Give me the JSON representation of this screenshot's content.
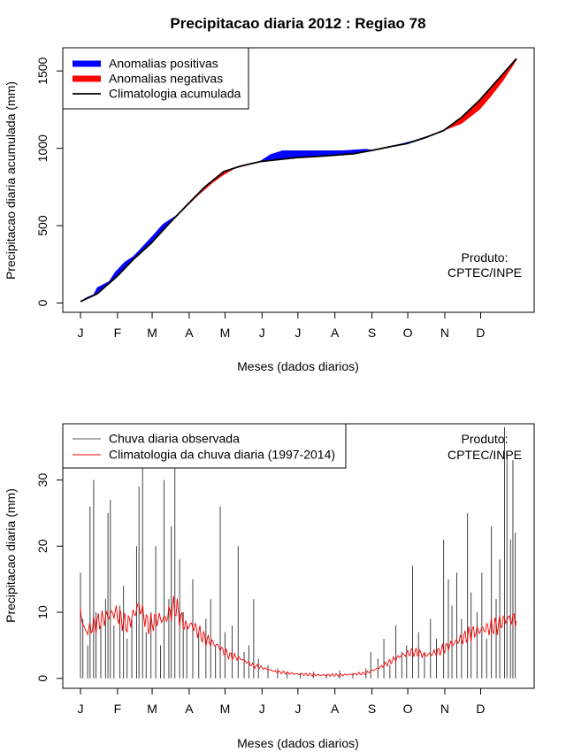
{
  "title": "Precipitacao diaria 2012 : Regiao 78",
  "chart_data": [
    {
      "type": "area",
      "ylabel": "Precipitacao diaria acumulada (mm)",
      "xlabel": "Meses (dados diarios)",
      "x_ticks": [
        "J",
        "F",
        "M",
        "A",
        "M",
        "J",
        "J",
        "A",
        "S",
        "O",
        "N",
        "D"
      ],
      "x_range_days": [
        1,
        366
      ],
      "ylim": [
        -60,
        1650
      ],
      "y_ticks": [
        0,
        500,
        1000,
        1500
      ],
      "legend": {
        "position": "top-left",
        "items": [
          {
            "label": "Anomalias positivas",
            "color": "#0000ff",
            "kind": "thick-line"
          },
          {
            "label": "Anomalias negativas",
            "color": "#ff0000",
            "kind": "thick-line"
          },
          {
            "label": "Climatologia acumulada",
            "color": "#000000",
            "kind": "line"
          }
        ]
      },
      "annotation": [
        "Produto:",
        "CPTEC/INPE"
      ],
      "climatology_knots": [
        [
          1,
          10
        ],
        [
          15,
          60
        ],
        [
          32,
          175
        ],
        [
          45,
          280
        ],
        [
          60,
          385
        ],
        [
          76,
          520
        ],
        [
          91,
          640
        ],
        [
          105,
          750
        ],
        [
          121,
          850
        ],
        [
          135,
          885
        ],
        [
          152,
          915
        ],
        [
          170,
          930
        ],
        [
          182,
          940
        ],
        [
          200,
          948
        ],
        [
          213,
          955
        ],
        [
          230,
          965
        ],
        [
          244,
          985
        ],
        [
          260,
          1010
        ],
        [
          274,
          1030
        ],
        [
          290,
          1070
        ],
        [
          305,
          1115
        ],
        [
          320,
          1200
        ],
        [
          335,
          1310
        ],
        [
          350,
          1440
        ],
        [
          366,
          1580
        ]
      ],
      "observed_knots": [
        [
          1,
          10
        ],
        [
          6,
          35
        ],
        [
          12,
          55
        ],
        [
          15,
          100
        ],
        [
          25,
          140
        ],
        [
          30,
          200
        ],
        [
          38,
          265
        ],
        [
          45,
          300
        ],
        [
          50,
          340
        ],
        [
          62,
          440
        ],
        [
          70,
          510
        ],
        [
          80,
          560
        ],
        [
          88,
          610
        ],
        [
          100,
          700
        ],
        [
          112,
          780
        ],
        [
          121,
          830
        ],
        [
          130,
          870
        ],
        [
          145,
          900
        ],
        [
          152,
          920
        ],
        [
          160,
          960
        ],
        [
          170,
          985
        ],
        [
          180,
          985
        ],
        [
          200,
          985
        ],
        [
          220,
          985
        ],
        [
          230,
          990
        ],
        [
          240,
          995
        ],
        [
          244,
          990
        ],
        [
          250,
          995
        ],
        [
          258,
          1010
        ],
        [
          270,
          1030
        ],
        [
          280,
          1050
        ],
        [
          292,
          1080
        ],
        [
          305,
          1115
        ],
        [
          320,
          1160
        ],
        [
          335,
          1250
        ],
        [
          345,
          1340
        ],
        [
          355,
          1440
        ],
        [
          366,
          1570
        ]
      ]
    },
    {
      "type": "bar",
      "ylabel": "Precipitacao diaria (mm)",
      "xlabel": "Meses (dados diarios)",
      "x_ticks": [
        "J",
        "F",
        "M",
        "A",
        "M",
        "J",
        "J",
        "A",
        "S",
        "O",
        "N",
        "D"
      ],
      "x_range_days": [
        1,
        366
      ],
      "ylim": [
        -1.5,
        38.5
      ],
      "y_ticks": [
        0,
        10,
        20,
        30
      ],
      "legend": {
        "position": "top-left",
        "items": [
          {
            "label": "Chuva diaria observada",
            "color": "#555555",
            "kind": "line"
          },
          {
            "label": "Climatologia da chuva diaria (1997-2014)",
            "color": "#ff0000",
            "kind": "line"
          }
        ]
      },
      "annotation": [
        "Produto:",
        "CPTEC/INPE"
      ],
      "observed_peaks": [
        [
          1,
          16
        ],
        [
          3,
          9
        ],
        [
          7,
          5
        ],
        [
          9,
          26
        ],
        [
          12,
          30
        ],
        [
          14,
          10
        ],
        [
          18,
          8
        ],
        [
          22,
          12
        ],
        [
          24,
          25
        ],
        [
          26,
          27
        ],
        [
          29,
          8
        ],
        [
          34,
          11
        ],
        [
          37,
          14
        ],
        [
          40,
          6
        ],
        [
          44,
          9
        ],
        [
          48,
          20
        ],
        [
          50,
          29
        ],
        [
          53,
          33
        ],
        [
          56,
          7
        ],
        [
          60,
          10
        ],
        [
          64,
          20
        ],
        [
          68,
          5
        ],
        [
          71,
          30
        ],
        [
          75,
          12
        ],
        [
          77,
          23
        ],
        [
          80,
          33
        ],
        [
          84,
          18
        ],
        [
          87,
          10
        ],
        [
          90,
          8
        ],
        [
          95,
          15
        ],
        [
          100,
          7
        ],
        [
          106,
          9
        ],
        [
          110,
          12
        ],
        [
          114,
          5
        ],
        [
          118,
          26
        ],
        [
          122,
          7
        ],
        [
          128,
          8
        ],
        [
          133,
          20
        ],
        [
          138,
          4
        ],
        [
          142,
          5
        ],
        [
          146,
          12
        ],
        [
          150,
          3
        ],
        [
          158,
          2
        ],
        [
          166,
          1.5
        ],
        [
          174,
          1
        ],
        [
          185,
          0.8
        ],
        [
          196,
          1
        ],
        [
          207,
          0.6
        ],
        [
          218,
          1.2
        ],
        [
          229,
          0.8
        ],
        [
          240,
          1.5
        ],
        [
          244,
          4
        ],
        [
          250,
          3
        ],
        [
          255,
          6
        ],
        [
          260,
          2
        ],
        [
          265,
          8
        ],
        [
          270,
          4
        ],
        [
          274,
          5
        ],
        [
          279,
          17
        ],
        [
          284,
          7
        ],
        [
          289,
          4
        ],
        [
          294,
          9
        ],
        [
          299,
          6
        ],
        [
          305,
          21
        ],
        [
          309,
          15
        ],
        [
          312,
          11
        ],
        [
          316,
          16
        ],
        [
          320,
          9
        ],
        [
          325,
          25
        ],
        [
          328,
          13
        ],
        [
          333,
          10
        ],
        [
          337,
          16
        ],
        [
          341,
          6
        ],
        [
          345,
          23
        ],
        [
          349,
          12
        ],
        [
          352,
          18
        ],
        [
          356,
          38
        ],
        [
          358,
          34
        ],
        [
          361,
          21
        ],
        [
          363,
          33
        ],
        [
          365,
          22
        ]
      ],
      "climatology_knots": [
        [
          1,
          10
        ],
        [
          5,
          7
        ],
        [
          12,
          8
        ],
        [
          20,
          9
        ],
        [
          30,
          10
        ],
        [
          40,
          8
        ],
        [
          50,
          11
        ],
        [
          58,
          8
        ],
        [
          65,
          9
        ],
        [
          72,
          9
        ],
        [
          80,
          11
        ],
        [
          88,
          8
        ],
        [
          95,
          8
        ],
        [
          105,
          6
        ],
        [
          115,
          5
        ],
        [
          125,
          3.5
        ],
        [
          135,
          3
        ],
        [
          145,
          2
        ],
        [
          155,
          1.5
        ],
        [
          165,
          1
        ],
        [
          180,
          0.7
        ],
        [
          200,
          0.5
        ],
        [
          220,
          0.5
        ],
        [
          240,
          0.8
        ],
        [
          250,
          1.5
        ],
        [
          260,
          2.5
        ],
        [
          270,
          3.5
        ],
        [
          280,
          4
        ],
        [
          290,
          3.5
        ],
        [
          300,
          4
        ],
        [
          310,
          5
        ],
        [
          320,
          6
        ],
        [
          330,
          7
        ],
        [
          340,
          7.5
        ],
        [
          350,
          8
        ],
        [
          358,
          9
        ],
        [
          366,
          9
        ]
      ]
    }
  ]
}
